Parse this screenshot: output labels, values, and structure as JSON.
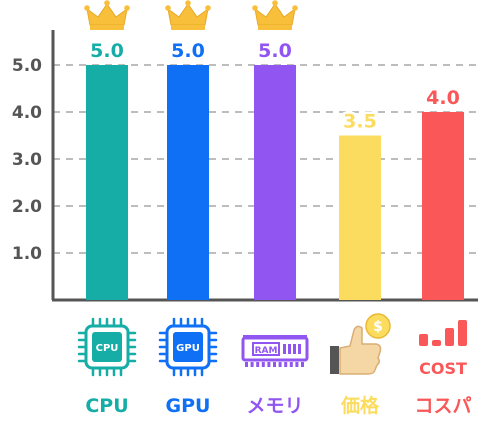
{
  "chart_data": {
    "type": "bar",
    "categories": [
      "CPU",
      "GPU",
      "メモリ",
      "価格",
      "コスパ"
    ],
    "values": [
      5.0,
      5.0,
      5.0,
      3.5,
      4.0
    ],
    "value_labels": [
      "5.0",
      "5.0",
      "5.0",
      "3.5",
      "4.0"
    ],
    "y_ticks": [
      "1.0",
      "2.0",
      "3.0",
      "4.0",
      "5.0"
    ],
    "ylim": [
      0,
      5.0
    ],
    "grid": true,
    "colors": [
      "#16ADA6",
      "#0F6FF5",
      "#9155F2",
      "#FCDC5E",
      "#FA5758"
    ],
    "crowned": [
      true,
      true,
      true,
      false,
      false
    ],
    "icons": [
      "cpu-chip-icon",
      "gpu-chip-icon",
      "ram-module-icon",
      "thumbs-up-coin-icon",
      "cost-chart-icon"
    ],
    "icon_text": {
      "cpu": "CPU",
      "gpu": "GPU",
      "ram": "RAM",
      "coin": "$",
      "cost": "COST"
    }
  }
}
